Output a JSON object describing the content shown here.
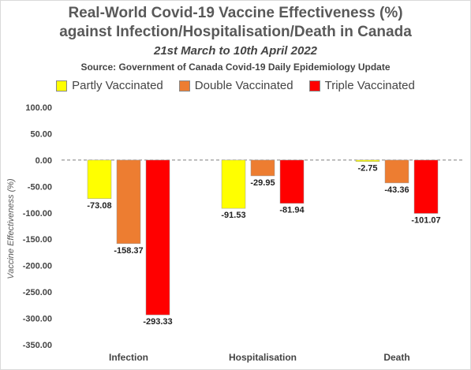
{
  "chart_data": {
    "type": "bar",
    "title": "Real-World Covid-19 Vaccine Effectiveness (%)",
    "title_line2": "against Infection/Hospitalisation/Death in Canada",
    "subtitle": "21st March to 10th April 2022",
    "source": "Source: Government of Canada Covid-19 Daily Epidemiology Update",
    "ylabel": "Vaccine Effectiveness (%)",
    "xlabel": "",
    "ylim": [
      -350,
      100
    ],
    "yticks": [
      "100.00",
      "50.00",
      "0.00",
      "-50.00",
      "-100.00",
      "-150.00",
      "-200.00",
      "-250.00",
      "-300.00",
      "-350.00"
    ],
    "ytick_values": [
      100,
      50,
      0,
      -50,
      -100,
      -150,
      -200,
      -250,
      -300,
      -350
    ],
    "categories": [
      "Infection",
      "Hospitalisation",
      "Death"
    ],
    "series": [
      {
        "name": "Partly Vaccinated",
        "color": "#ffff00",
        "values": [
          -73.08,
          -91.53,
          -2.75
        ],
        "labels": [
          "-73.08",
          "-91.53",
          "-2.75"
        ]
      },
      {
        "name": "Double Vaccinated",
        "color": "#ed7d31",
        "values": [
          -158.37,
          -29.95,
          -43.36
        ],
        "labels": [
          "-158.37",
          "-29.95",
          "-43.36"
        ]
      },
      {
        "name": "Triple Vaccinated",
        "color": "#ff0000",
        "values": [
          -293.33,
          -81.94,
          -101.07
        ],
        "labels": [
          "-293.33",
          "-81.94",
          "-101.07"
        ]
      }
    ],
    "legend_position": "top",
    "grid": false,
    "zero_line": "dashed"
  }
}
